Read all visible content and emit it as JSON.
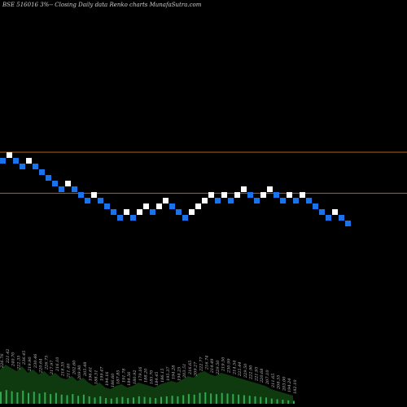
{
  "header": {
    "title": "BSE 516016  3%-- Closing Daily data  Renko  charts MunafaSutra.com"
  },
  "colors": {
    "background": "#000000",
    "up_brick": "#ffffff",
    "down_brick": "#1a73e8",
    "reference_line": "#b5602a",
    "volume_fill": "#0f3a0f",
    "volume_bar": "#2fa84f"
  },
  "chart_data": [
    {
      "type": "renko",
      "title": "BSE 516016  3%-- Closing Daily data  Renko  charts MunafaSutra.com",
      "bricks": [
        {
          "dir": "down",
          "level": 15
        },
        {
          "dir": "up",
          "level": 16
        },
        {
          "dir": "down",
          "level": 15
        },
        {
          "dir": "down",
          "level": 14
        },
        {
          "dir": "up",
          "level": 15
        },
        {
          "dir": "down",
          "level": 14
        },
        {
          "dir": "down",
          "level": 13
        },
        {
          "dir": "down",
          "level": 12
        },
        {
          "dir": "down",
          "level": 11
        },
        {
          "dir": "down",
          "level": 10
        },
        {
          "dir": "up",
          "level": 11
        },
        {
          "dir": "down",
          "level": 10
        },
        {
          "dir": "down",
          "level": 9
        },
        {
          "dir": "down",
          "level": 8
        },
        {
          "dir": "up",
          "level": 9
        },
        {
          "dir": "down",
          "level": 8
        },
        {
          "dir": "down",
          "level": 7
        },
        {
          "dir": "down",
          "level": 6
        },
        {
          "dir": "down",
          "level": 5
        },
        {
          "dir": "up",
          "level": 6
        },
        {
          "dir": "down",
          "level": 5
        },
        {
          "dir": "up",
          "level": 6
        },
        {
          "dir": "up",
          "level": 7
        },
        {
          "dir": "down",
          "level": 6
        },
        {
          "dir": "up",
          "level": 7
        },
        {
          "dir": "up",
          "level": 8
        },
        {
          "dir": "down",
          "level": 7
        },
        {
          "dir": "down",
          "level": 6
        },
        {
          "dir": "down",
          "level": 5
        },
        {
          "dir": "up",
          "level": 6
        },
        {
          "dir": "up",
          "level": 7
        },
        {
          "dir": "up",
          "level": 8
        },
        {
          "dir": "up",
          "level": 9
        },
        {
          "dir": "down",
          "level": 8
        },
        {
          "dir": "up",
          "level": 9
        },
        {
          "dir": "down",
          "level": 8
        },
        {
          "dir": "up",
          "level": 9
        },
        {
          "dir": "up",
          "level": 10
        },
        {
          "dir": "down",
          "level": 9
        },
        {
          "dir": "down",
          "level": 8
        },
        {
          "dir": "up",
          "level": 9
        },
        {
          "dir": "up",
          "level": 10
        },
        {
          "dir": "down",
          "level": 9
        },
        {
          "dir": "down",
          "level": 8
        },
        {
          "dir": "up",
          "level": 9
        },
        {
          "dir": "down",
          "level": 8
        },
        {
          "dir": "up",
          "level": 9
        },
        {
          "dir": "down",
          "level": 8
        },
        {
          "dir": "down",
          "level": 7
        },
        {
          "dir": "down",
          "level": 6
        },
        {
          "dir": "down",
          "level": 5
        },
        {
          "dir": "up",
          "level": 6
        },
        {
          "dir": "down",
          "level": 5
        },
        {
          "dir": "down",
          "level": 4
        }
      ],
      "reference_lines": [
        {
          "level": 16.5
        },
        {
          "level": 9.3
        }
      ],
      "level_range": [
        0,
        30
      ]
    },
    {
      "type": "bar",
      "volume_values": [
        42,
        48,
        44,
        40,
        46,
        38,
        42,
        36,
        40,
        34,
        38,
        32,
        30,
        34,
        28,
        32,
        26,
        22,
        26,
        20,
        18,
        22,
        24,
        20,
        22,
        26,
        24,
        22,
        20,
        24,
        26,
        28,
        26,
        30,
        34,
        32,
        38,
        40,
        36,
        34,
        38,
        36,
        34,
        32,
        30,
        28,
        26,
        24,
        22,
        18,
        16,
        14,
        12,
        10
      ],
      "tick_labels": [
        "226.76",
        "221.42",
        "240.70",
        "222.35",
        "236.45",
        "219.90",
        "230.46",
        "220.64",
        "226.75",
        "217.97",
        "216.10",
        "218.35",
        "211.40",
        "202.60",
        "209.90",
        "205.48",
        "196.61",
        "188.51",
        "199.47",
        "194.16",
        "186.60",
        "187.85",
        "191.78",
        "184.56",
        "180.92",
        "179.16",
        "188.20",
        "185.70",
        "184.45",
        "186.15",
        "195.37",
        "194.28",
        "194.25",
        "203.51",
        "216.65",
        "209.27",
        "222.77",
        "216.74",
        "214.49",
        "229.50",
        "219.50",
        "230.99",
        "214.54",
        "225.44",
        "229.50",
        "222.90",
        "221.95",
        "220.68",
        "207.10",
        "211.65",
        "208.55",
        "203.00",
        "194.24",
        "182.10"
      ]
    }
  ]
}
